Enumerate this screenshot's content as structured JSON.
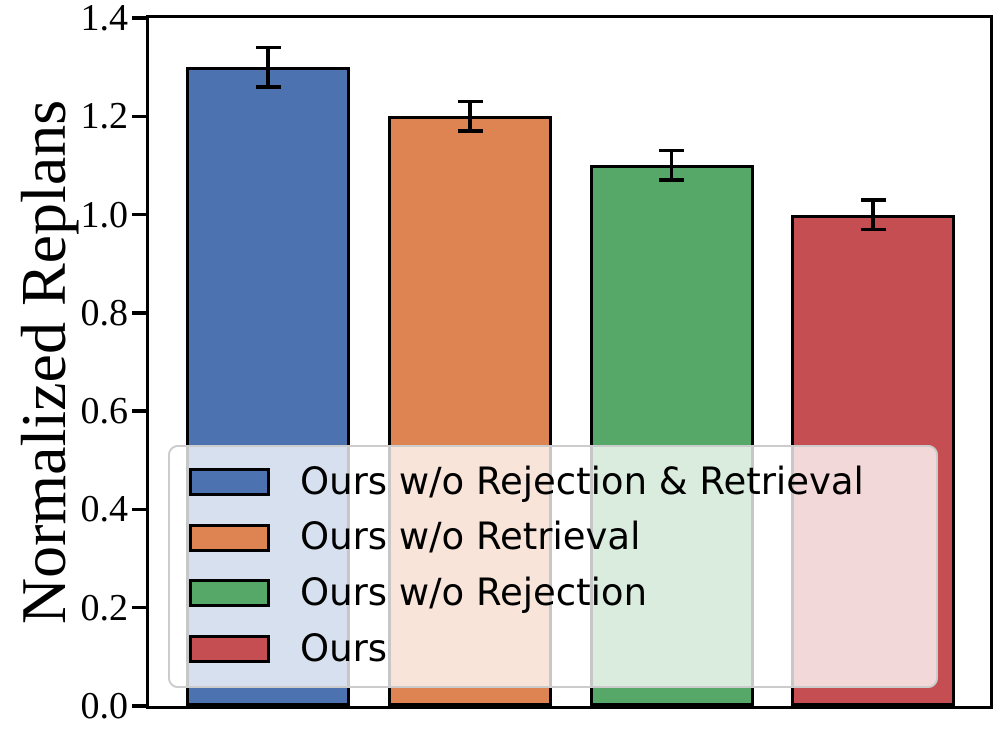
{
  "chart_data": {
    "type": "bar",
    "categories": [
      "Ours w/o Rejection & Retrieval",
      "Ours w/o Retrieval",
      "Ours w/o Rejection",
      "Ours"
    ],
    "values": [
      1.3,
      1.2,
      1.1,
      1.0
    ],
    "errors": [
      0.04,
      0.03,
      0.03,
      0.03
    ],
    "colors": [
      "#4C72B0",
      "#DD8452",
      "#55A868",
      "#C44E52"
    ],
    "bar_edge_color": "#000000",
    "error_bar_color": "#000000",
    "title": "",
    "xlabel": "",
    "ylabel": "Normalized Replans",
    "ylim": [
      0.0,
      1.4
    ],
    "yticks": [
      "0.0",
      "0.2",
      "0.4",
      "0.6",
      "0.8",
      "1.0",
      "1.2",
      "1.4"
    ],
    "xtick_labels": [],
    "grid": false,
    "legend": {
      "position": "lower-left inside plot",
      "background": "rgba(255,255,255,0.78)",
      "entries": [
        {
          "label": "Ours w/o Rejection & Retrieval",
          "color": "#4C72B0"
        },
        {
          "label": "Ours w/o Retrieval",
          "color": "#DD8452"
        },
        {
          "label": "Ours w/o Rejection",
          "color": "#55A868"
        },
        {
          "label": "Ours",
          "color": "#C44E52"
        }
      ]
    }
  }
}
